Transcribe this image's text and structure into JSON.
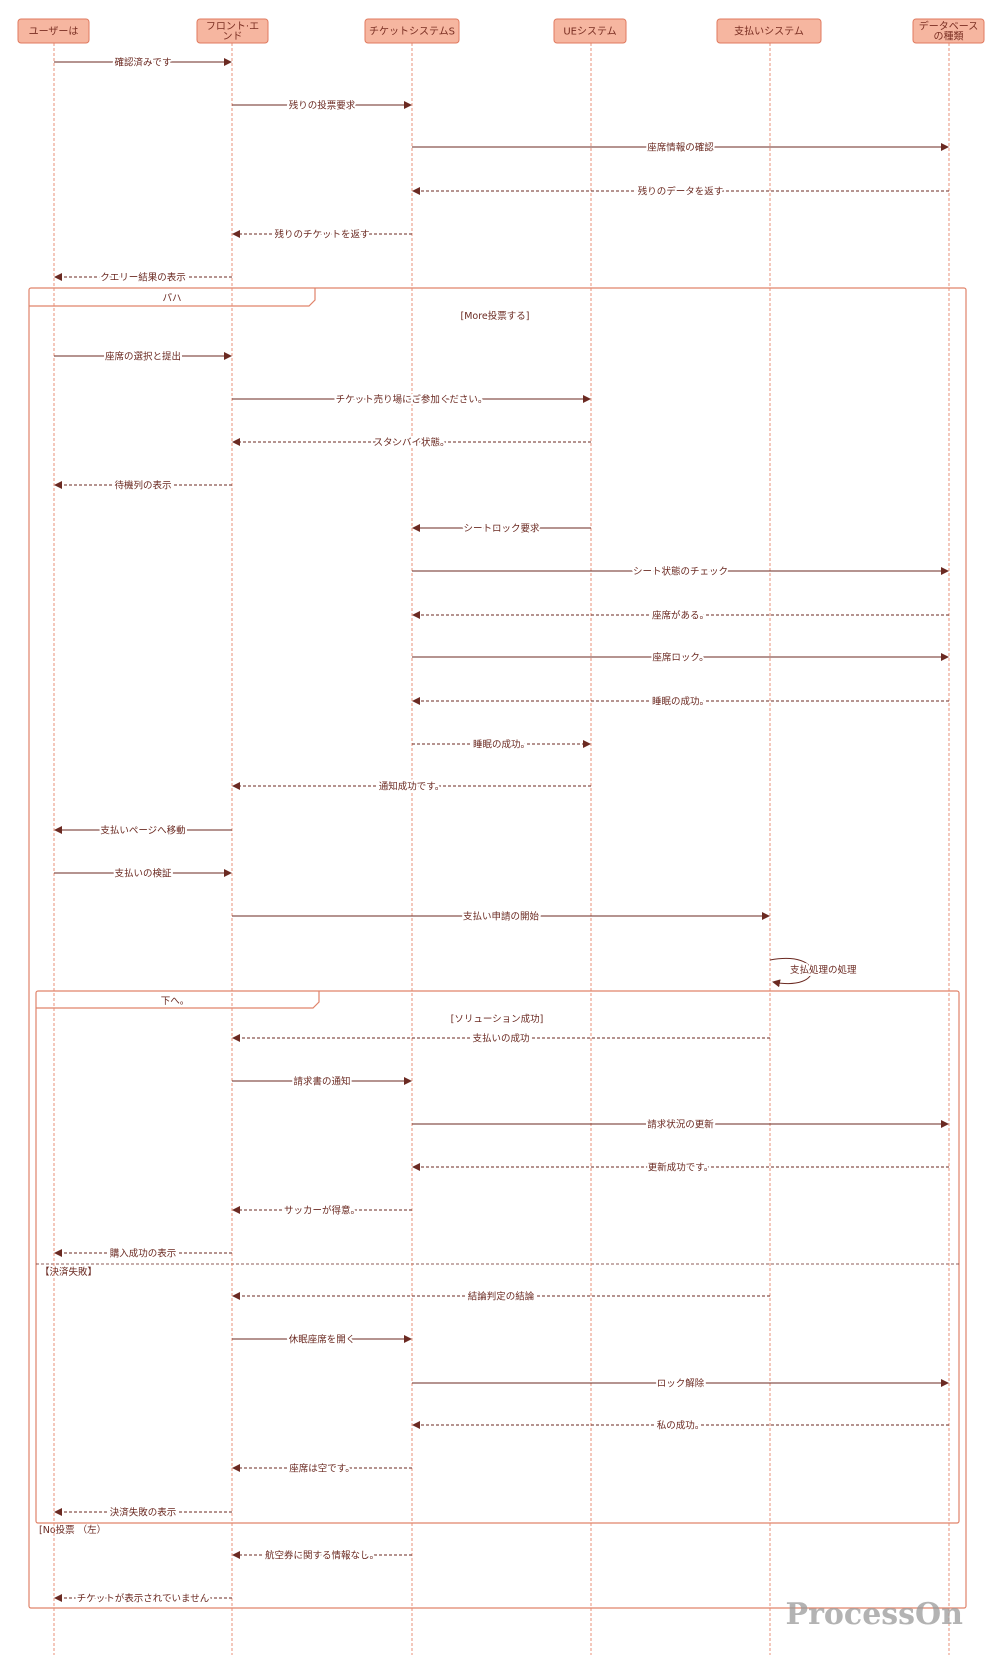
{
  "colors": {
    "participant_fill": "#f6b6a0",
    "participant_border": "#e07a5f",
    "lifeline": "#e8866c",
    "arrow": "#6b2a22",
    "frame": "#e0836a"
  },
  "participants": [
    {
      "lines": [
        "ユーザーは"
      ]
    },
    {
      "lines": [
        "フロント·エ",
        "ンド"
      ]
    },
    {
      "lines": [
        "チケットシステムS"
      ]
    },
    {
      "lines": [
        "UEシステム"
      ]
    },
    {
      "lines": [
        "支払いシステム"
      ]
    },
    {
      "lines": [
        "データベース",
        "の種類"
      ]
    }
  ],
  "messages": [
    {
      "from": 0,
      "to": 1,
      "label": "確認済みです",
      "dashed": false
    },
    {
      "from": 1,
      "to": 2,
      "label": "残りの投票要求",
      "dashed": false
    },
    {
      "from": 2,
      "to": 5,
      "label": "座席情報の確認",
      "dashed": false
    },
    {
      "from": 5,
      "to": 2,
      "label": "残りのデータを返す",
      "dashed": true
    },
    {
      "from": 2,
      "to": 1,
      "label": "残りのチケットを返す",
      "dashed": true
    },
    {
      "from": 1,
      "to": 0,
      "label": "クエリー結果の表示",
      "dashed": true
    },
    {
      "from": 0,
      "to": 1,
      "label": "座席の選択と提出",
      "dashed": false
    },
    {
      "from": 1,
      "to": 3,
      "label": "チケット売り場にご参加ください。",
      "dashed": false
    },
    {
      "from": 3,
      "to": 1,
      "label": "スタンバイ状態。",
      "dashed": true
    },
    {
      "from": 1,
      "to": 0,
      "label": "待機列の表示",
      "dashed": true
    },
    {
      "from": 3,
      "to": 2,
      "label": "シートロック要求",
      "dashed": false
    },
    {
      "from": 2,
      "to": 5,
      "label": "シート状態のチェック",
      "dashed": false
    },
    {
      "from": 5,
      "to": 2,
      "label": "座席がある。",
      "dashed": true
    },
    {
      "from": 2,
      "to": 5,
      "label": "座席ロック。",
      "dashed": false
    },
    {
      "from": 5,
      "to": 2,
      "label": "睡眠の成功。",
      "dashed": true
    },
    {
      "from": 2,
      "to": 3,
      "label": "睡眠の成功。",
      "dashed": true
    },
    {
      "from": 3,
      "to": 1,
      "label": "通知成功です。",
      "dashed": true
    },
    {
      "from": 1,
      "to": 0,
      "label": "支払いページへ移動",
      "dashed": false
    },
    {
      "from": 0,
      "to": 1,
      "label": "支払いの検証",
      "dashed": false
    },
    {
      "from": 1,
      "to": 4,
      "label": "支払い申請の開始",
      "dashed": false
    },
    {
      "from": 4,
      "to": 4,
      "label": "支払処理の処理",
      "dashed": false
    },
    {
      "from": 4,
      "to": 1,
      "label": "支払いの成功",
      "dashed": true
    },
    {
      "from": 1,
      "to": 2,
      "label": "請求書の通知",
      "dashed": false
    },
    {
      "from": 2,
      "to": 5,
      "label": "請求状況の更新",
      "dashed": false
    },
    {
      "from": 5,
      "to": 2,
      "label": "更新成功です。",
      "dashed": true
    },
    {
      "from": 2,
      "to": 1,
      "label": "サッカーが得意。",
      "dashed": true
    },
    {
      "from": 1,
      "to": 0,
      "label": "購入成功の表示",
      "dashed": true
    },
    {
      "from": 4,
      "to": 1,
      "label": "結論判定の結論",
      "dashed": true
    },
    {
      "from": 1,
      "to": 2,
      "label": "休眠座席を開く",
      "dashed": false
    },
    {
      "from": 2,
      "to": 5,
      "label": "ロック解除",
      "dashed": false
    },
    {
      "from": 5,
      "to": 2,
      "label": "私の成功。",
      "dashed": true
    },
    {
      "from": 2,
      "to": 1,
      "label": "座席は空です。",
      "dashed": true
    },
    {
      "from": 1,
      "to": 0,
      "label": "決済失敗の表示",
      "dashed": true
    },
    {
      "from": 2,
      "to": 1,
      "label": "航空券に関する情報なし。",
      "dashed": true
    },
    {
      "from": 1,
      "to": 0,
      "label": "チケットが表示されていません",
      "dashed": true
    }
  ],
  "frames": {
    "outer": {
      "label": "パハ",
      "guard": "[More投票する]",
      "else_guard": "[No投票 （左）"
    },
    "inner": {
      "label": "下へ。",
      "guard": "[ソリューション成功]",
      "else_guard": "【決済失敗】"
    }
  },
  "watermark": "ProcessOn"
}
